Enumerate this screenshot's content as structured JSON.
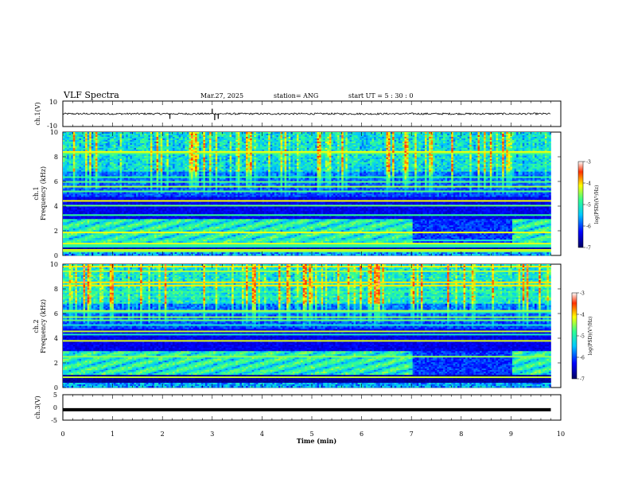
{
  "header": {
    "title": "VLF Spectra",
    "date": "Mar.27, 2025",
    "station": "station= ANG",
    "start": "start  UT =   5  : 30 : 0"
  },
  "chart_data": [
    {
      "type": "line",
      "name": "ch1-waveform",
      "ylabel": "ch.1(V)",
      "ylim": [
        -10,
        10
      ],
      "yticks": [
        10,
        -10
      ],
      "xlim": [
        0,
        10
      ],
      "x_extent": [
        0,
        9.8
      ],
      "baseline": 0,
      "spikes": [
        {
          "x": 2.15,
          "y": -4
        },
        {
          "x": 3.0,
          "y": 4
        },
        {
          "x": 3.05,
          "y": -5
        },
        {
          "x": 3.12,
          "y": -4
        }
      ]
    },
    {
      "type": "heatmap",
      "name": "ch1-spectrogram",
      "ylabel": "ch.1\nFrequency (kHz)",
      "ylim": [
        0,
        10
      ],
      "yticks": [
        0,
        2,
        4,
        6,
        8,
        10
      ],
      "xlim": [
        0,
        10
      ],
      "x_extent": [
        0,
        9.8
      ],
      "colorbar": {
        "label": "log(PSD)(V²/Hz)",
        "range": [
          -7,
          -3
        ],
        "ticks": [
          "-3",
          "-4",
          "-5",
          "-6",
          "-7"
        ]
      }
    },
    {
      "type": "heatmap",
      "name": "ch2-spectrogram",
      "ylabel": "ch.2\nFrequency (kHz)",
      "ylim": [
        0,
        10
      ],
      "yticks": [
        0,
        2,
        4,
        6,
        8,
        10
      ],
      "xlim": [
        0,
        10
      ],
      "x_extent": [
        0,
        9.8
      ],
      "colorbar": {
        "label": "log(PSD)(V²/Hz)",
        "range": [
          -7,
          -3
        ],
        "ticks": [
          "-3",
          "-4",
          "-5",
          "-6",
          "-7"
        ]
      }
    },
    {
      "type": "line",
      "name": "ch3-waveform",
      "ylabel": "ch.3(V)",
      "ylim": [
        -5,
        5
      ],
      "yticks": [
        5,
        0,
        -5
      ],
      "xlim": [
        0,
        10
      ],
      "x_extent": [
        0,
        9.8
      ],
      "baseline": -0.9
    }
  ],
  "xaxis": {
    "label": "Time (min)",
    "ticks": [
      "0",
      "1",
      "2",
      "3",
      "4",
      "5",
      "6",
      "7",
      "8",
      "9",
      "10"
    ]
  }
}
